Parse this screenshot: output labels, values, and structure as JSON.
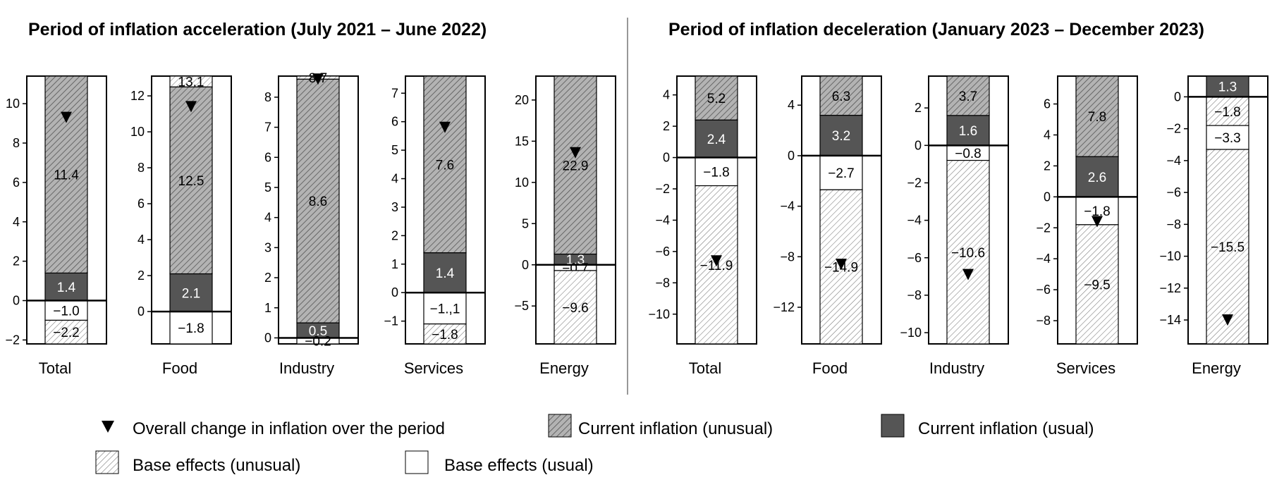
{
  "chart_data": {
    "type": "bar",
    "stacked": true,
    "titles": [
      "Period of inflation acceleration (July 2021 – June 2022)",
      "Period of inflation deceleration (January 2023 – December 2023)"
    ],
    "legend": {
      "placement": "bottom",
      "items": [
        {
          "key": "overall",
          "label": "Overall change in inflation over the period",
          "symbol": "triangle-down"
        },
        {
          "key": "cur_unusual",
          "label": "Current inflation (unusual)",
          "symbol": "dense-hatch-gray"
        },
        {
          "key": "cur_usual",
          "label": "Current inflation (usual)",
          "symbol": "solid-dark-gray"
        },
        {
          "key": "base_unusual",
          "label": "Base effects (unusual)",
          "symbol": "light-hatch"
        },
        {
          "key": "base_usual",
          "label": "Base effects (usual)",
          "symbol": "white"
        }
      ]
    },
    "colors": {
      "cur_usual": "#555555",
      "cur_unusual": "#aaaaaa",
      "base_unusual": "#ffffff",
      "base_usual": "#ffffff"
    },
    "panels": [
      {
        "category": "Total",
        "ylim": [
          -2.2,
          11.4
        ],
        "ticks": [
          "−2",
          "0",
          "2",
          "4",
          "6",
          "8",
          "10"
        ],
        "tick_values": [
          -2,
          0,
          2,
          4,
          6,
          8,
          10
        ],
        "segments": [
          {
            "key": "cur_usual",
            "value": 1.4,
            "label": "1.4"
          },
          {
            "key": "cur_unusual",
            "value": 11.4,
            "label": "11.4"
          },
          {
            "key": "base_usual",
            "value": -1.0,
            "label": "−1.0"
          },
          {
            "key": "base_unusual",
            "value": -2.2,
            "label": "−2.2"
          }
        ],
        "overall": 9.3
      },
      {
        "category": "Food",
        "ylim": [
          -1.8,
          13.1
        ],
        "ticks": [
          "0",
          "2",
          "4",
          "6",
          "8",
          "10",
          "12"
        ],
        "tick_values": [
          0,
          2,
          4,
          6,
          8,
          10,
          12
        ],
        "segments": [
          {
            "key": "cur_usual",
            "value": 2.1,
            "label": "2.1"
          },
          {
            "key": "cur_unusual",
            "value": 12.5,
            "label": "12.5"
          },
          {
            "key": "base_unusual",
            "value": 13.1,
            "label": "13.1"
          },
          {
            "key": "base_usual",
            "value": -1.8,
            "label": "−1.8"
          }
        ],
        "overall": 11.4
      },
      {
        "category": "Industry",
        "ylim": [
          -0.2,
          8.7
        ],
        "ticks": [
          "0",
          "1",
          "2",
          "3",
          "4",
          "5",
          "6",
          "7",
          "8"
        ],
        "tick_values": [
          0,
          1,
          2,
          3,
          4,
          5,
          6,
          7,
          8
        ],
        "segments": [
          {
            "key": "cur_usual",
            "value": 0.5,
            "label": "0.5"
          },
          {
            "key": "cur_unusual",
            "value": 8.6,
            "label": "8.6"
          },
          {
            "key": "base_unusual",
            "value": 8.7,
            "label": "8.7"
          },
          {
            "key": "base_usual",
            "value": -0.2,
            "label": "−0.2"
          }
        ],
        "overall": 8.6
      },
      {
        "category": "Services",
        "ylim": [
          -1.8,
          7.6
        ],
        "ticks": [
          "−1",
          "0",
          "1",
          "2",
          "3",
          "4",
          "5",
          "6",
          "7"
        ],
        "tick_values": [
          -1,
          0,
          1,
          2,
          3,
          4,
          5,
          6,
          7
        ],
        "segments": [
          {
            "key": "cur_usual",
            "value": 1.4,
            "label": "1.4"
          },
          {
            "key": "cur_unusual",
            "value": 7.6,
            "label": "7.6"
          },
          {
            "key": "base_usual",
            "value": -1.1,
            "label": "−1.,1"
          },
          {
            "key": "base_unusual",
            "value": -1.8,
            "label": "−1.8"
          }
        ],
        "overall": 5.8
      },
      {
        "category": "Energy",
        "ylim": [
          -9.6,
          22.9
        ],
        "ticks": [
          "−5",
          "0",
          "5",
          "10",
          "15",
          "20"
        ],
        "tick_values": [
          -5,
          0,
          5,
          10,
          15,
          20
        ],
        "segments": [
          {
            "key": "cur_usual",
            "value": 1.3,
            "label": "1.3"
          },
          {
            "key": "cur_unusual",
            "value": 22.9,
            "label": "22.9"
          },
          {
            "key": "base_usual",
            "value": -0.7,
            "label": "−0.7"
          },
          {
            "key": "base_unusual",
            "value": -9.6,
            "label": "−9.6"
          }
        ],
        "overall": 13.6
      },
      {
        "category": "Total",
        "ylim": [
          -11.9,
          5.2
        ],
        "ticks": [
          "−10",
          "−8",
          "−6",
          "−4",
          "−2",
          "0",
          "2",
          "4"
        ],
        "tick_values": [
          -10,
          -8,
          -6,
          -4,
          -2,
          0,
          2,
          4
        ],
        "segments": [
          {
            "key": "cur_usual",
            "value": 2.4,
            "label": "2.4"
          },
          {
            "key": "cur_unusual",
            "value": 5.2,
            "label": "5.2"
          },
          {
            "key": "base_usual",
            "value": -1.8,
            "label": "−1.8"
          },
          {
            "key": "base_unusual",
            "value": -11.9,
            "label": "−11.9"
          }
        ],
        "overall": -6.6
      },
      {
        "category": "Food",
        "ylim": [
          -14.9,
          6.3
        ],
        "ticks": [
          "−12",
          "−8",
          "−4",
          "0",
          "4"
        ],
        "tick_values": [
          -12,
          -8,
          -4,
          0,
          4
        ],
        "segments": [
          {
            "key": "cur_usual",
            "value": 3.2,
            "label": "3.2"
          },
          {
            "key": "cur_unusual",
            "value": 6.3,
            "label": "6.3"
          },
          {
            "key": "base_usual",
            "value": -2.7,
            "label": "−2.7"
          },
          {
            "key": "base_unusual",
            "value": -14.9,
            "label": "−14.9"
          }
        ],
        "overall": -8.6
      },
      {
        "category": "Industry",
        "ylim": [
          -10.6,
          3.7
        ],
        "ticks": [
          "−10",
          "−8",
          "−6",
          "−4",
          "−2",
          "0",
          "2"
        ],
        "tick_values": [
          -10,
          -8,
          -6,
          -4,
          -2,
          0,
          2
        ],
        "segments": [
          {
            "key": "cur_usual",
            "value": 1.6,
            "label": "1.6"
          },
          {
            "key": "cur_unusual",
            "value": 3.7,
            "label": "3.7"
          },
          {
            "key": "base_usual",
            "value": -0.8,
            "label": "−0.8"
          },
          {
            "key": "base_unusual",
            "value": -10.6,
            "label": "−10.6"
          }
        ],
        "overall": -6.9
      },
      {
        "category": "Services",
        "ylim": [
          -9.5,
          7.8
        ],
        "ticks": [
          "−8",
          "−6",
          "−4",
          "−2",
          "0",
          "2",
          "4",
          "6"
        ],
        "tick_values": [
          -8,
          -6,
          -4,
          -2,
          0,
          2,
          4,
          6
        ],
        "segments": [
          {
            "key": "cur_usual",
            "value": 2.6,
            "label": "2.6"
          },
          {
            "key": "cur_unusual",
            "value": 7.8,
            "label": "7.8"
          },
          {
            "key": "base_usual",
            "value": -1.8,
            "label": "−1.8"
          },
          {
            "key": "base_unusual",
            "value": -9.5,
            "label": "−9.5"
          }
        ],
        "overall": -1.6
      },
      {
        "category": "Energy",
        "ylim": [
          -15.5,
          1.3
        ],
        "ticks": [
          "−14",
          "−12",
          "−10",
          "−8",
          "−6",
          "−4",
          "−2",
          "0"
        ],
        "tick_values": [
          -14,
          -12,
          -10,
          -8,
          -6,
          -4,
          -2,
          0
        ],
        "segments": [
          {
            "key": "cur_usual",
            "value": 1.3,
            "label": "1.3"
          },
          {
            "key": "base_unusual",
            "value": -1.8,
            "label": "−1.8"
          },
          {
            "key": "base_usual",
            "value": -3.3,
            "label": "−3.3"
          },
          {
            "key": "base_unusual",
            "value": -15.5,
            "label": "−15.5"
          }
        ],
        "overall": -14.0
      }
    ]
  }
}
